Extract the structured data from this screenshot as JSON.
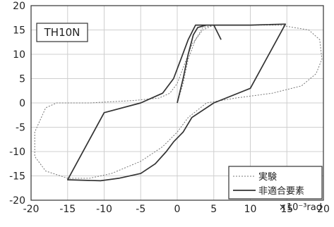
{
  "chart_data": {
    "type": "line",
    "specimen_label": "TH10N",
    "x_unit": "×10⁻³rad",
    "xlim": [
      -20,
      20
    ],
    "ylim": [
      -20,
      20
    ],
    "x_ticks": [
      -20,
      -15,
      -10,
      -5,
      0,
      5,
      10,
      15,
      20
    ],
    "y_ticks": [
      -20,
      -15,
      -10,
      -5,
      0,
      5,
      10,
      15,
      20
    ],
    "grid": true,
    "legend_position": "bottom-right",
    "series": [
      {
        "name": "実験",
        "style": "dotted",
        "color": "#777777",
        "points": [
          [
            0,
            0
          ],
          [
            0.8,
            4
          ],
          [
            1.5,
            9
          ],
          [
            2.5,
            13
          ],
          [
            3.5,
            15.5
          ],
          [
            5,
            16
          ],
          [
            10,
            16
          ],
          [
            14,
            16
          ],
          [
            16,
            15.5
          ],
          [
            18,
            15
          ],
          [
            19.5,
            13
          ],
          [
            19.8,
            9
          ],
          [
            19,
            6
          ],
          [
            17,
            3.5
          ],
          [
            13,
            2
          ],
          [
            8,
            1
          ],
          [
            4,
            0
          ],
          [
            1.5,
            -3
          ],
          [
            0,
            -6
          ],
          [
            -2,
            -9
          ],
          [
            -5,
            -12
          ],
          [
            -9,
            -14.5
          ],
          [
            -12,
            -15.5
          ],
          [
            -15,
            -15.5
          ],
          [
            -18,
            -14
          ],
          [
            -19.5,
            -11
          ],
          [
            -19.5,
            -6
          ],
          [
            -18,
            -1
          ],
          [
            -16.5,
            0
          ],
          [
            -12,
            0
          ],
          [
            -6,
            0.5
          ],
          [
            -2.5,
            1
          ],
          [
            -1,
            2
          ],
          [
            0,
            4
          ],
          [
            1,
            8
          ],
          [
            2,
            12
          ],
          [
            3.5,
            15
          ],
          [
            5,
            16
          ]
        ]
      },
      {
        "name": "非適合要素",
        "style": "solid",
        "color": "#333333",
        "points": [
          [
            0,
            0
          ],
          [
            0.8,
            5
          ],
          [
            1.5,
            10
          ],
          [
            2.2,
            14
          ],
          [
            2.8,
            15.5
          ],
          [
            4,
            16
          ],
          [
            10,
            16
          ],
          [
            14.8,
            16.2
          ],
          [
            10,
            3
          ],
          [
            5,
            0
          ],
          [
            2,
            -3
          ],
          [
            0.8,
            -6
          ],
          [
            -0.5,
            -8
          ],
          [
            -1.5,
            -10
          ],
          [
            -3,
            -12.5
          ],
          [
            -5,
            -14.5
          ],
          [
            -8,
            -15.5
          ],
          [
            -10.5,
            -16
          ],
          [
            -15,
            -15.8
          ],
          [
            -10,
            -2
          ],
          [
            -5,
            0
          ],
          [
            -2,
            2
          ],
          [
            -0.5,
            5
          ],
          [
            0.5,
            9
          ],
          [
            1.5,
            13
          ],
          [
            2.5,
            16
          ],
          [
            5,
            16
          ],
          [
            6,
            13
          ]
        ]
      }
    ]
  }
}
